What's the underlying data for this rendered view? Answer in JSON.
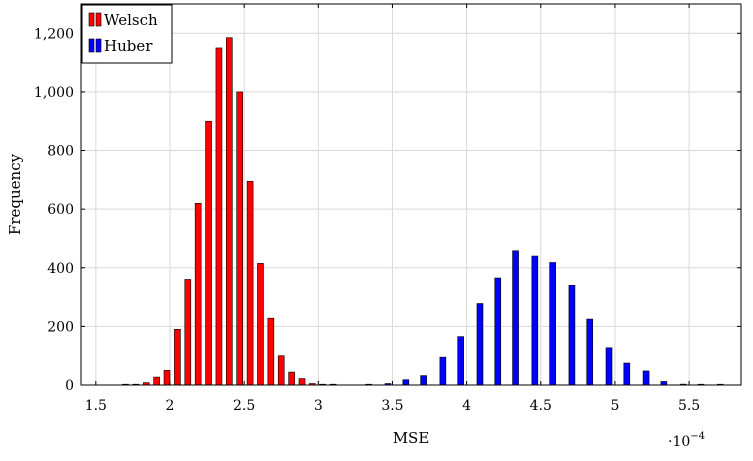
{
  "chart_data": {
    "type": "bar",
    "xlabel": "MSE",
    "ylabel": "Frequency",
    "x_scale_label": {
      "base": "·10",
      "exponent": "−4"
    },
    "xlim": [
      1.4,
      5.85
    ],
    "ylim": [
      0,
      1300
    ],
    "xticks": [
      1.5,
      2,
      2.5,
      3,
      3.5,
      4,
      4.5,
      5,
      5.5
    ],
    "xtick_labels": [
      "1.5",
      "2",
      "2.5",
      "3",
      "3.5",
      "4",
      "4.5",
      "5",
      "5.5"
    ],
    "yticks": [
      0,
      200,
      400,
      600,
      800,
      1000,
      1200
    ],
    "ytick_labels": [
      "0",
      "200",
      "400",
      "600",
      "800",
      "1,000",
      "1,200"
    ],
    "grid": true,
    "legend_position": "top-left",
    "series": [
      {
        "name": "Welsch",
        "color": "#ff0000",
        "points": [
          [
            1.7,
            1
          ],
          [
            1.77,
            2
          ],
          [
            1.84,
            8
          ],
          [
            1.91,
            27
          ],
          [
            1.98,
            50
          ],
          [
            2.05,
            190
          ],
          [
            2.12,
            360
          ],
          [
            2.19,
            620
          ],
          [
            2.26,
            900
          ],
          [
            2.33,
            1150
          ],
          [
            2.4,
            1185
          ],
          [
            2.47,
            1000
          ],
          [
            2.54,
            695
          ],
          [
            2.61,
            415
          ],
          [
            2.68,
            228
          ],
          [
            2.75,
            100
          ],
          [
            2.82,
            44
          ],
          [
            2.89,
            22
          ],
          [
            2.96,
            5
          ],
          [
            3.03,
            1
          ],
          [
            3.1,
            1
          ]
        ]
      },
      {
        "name": "Huber",
        "color": "#0000ff",
        "points": [
          [
            3.34,
            1
          ],
          [
            3.47,
            5
          ],
          [
            3.59,
            18
          ],
          [
            3.71,
            32
          ],
          [
            3.84,
            95
          ],
          [
            3.96,
            165
          ],
          [
            4.09,
            278
          ],
          [
            4.21,
            365
          ],
          [
            4.33,
            458
          ],
          [
            4.46,
            440
          ],
          [
            4.58,
            418
          ],
          [
            4.71,
            340
          ],
          [
            4.83,
            225
          ],
          [
            4.96,
            127
          ],
          [
            5.08,
            75
          ],
          [
            5.21,
            48
          ],
          [
            5.33,
            12
          ],
          [
            5.46,
            3
          ],
          [
            5.58,
            1
          ],
          [
            5.71,
            1
          ]
        ]
      }
    ]
  }
}
